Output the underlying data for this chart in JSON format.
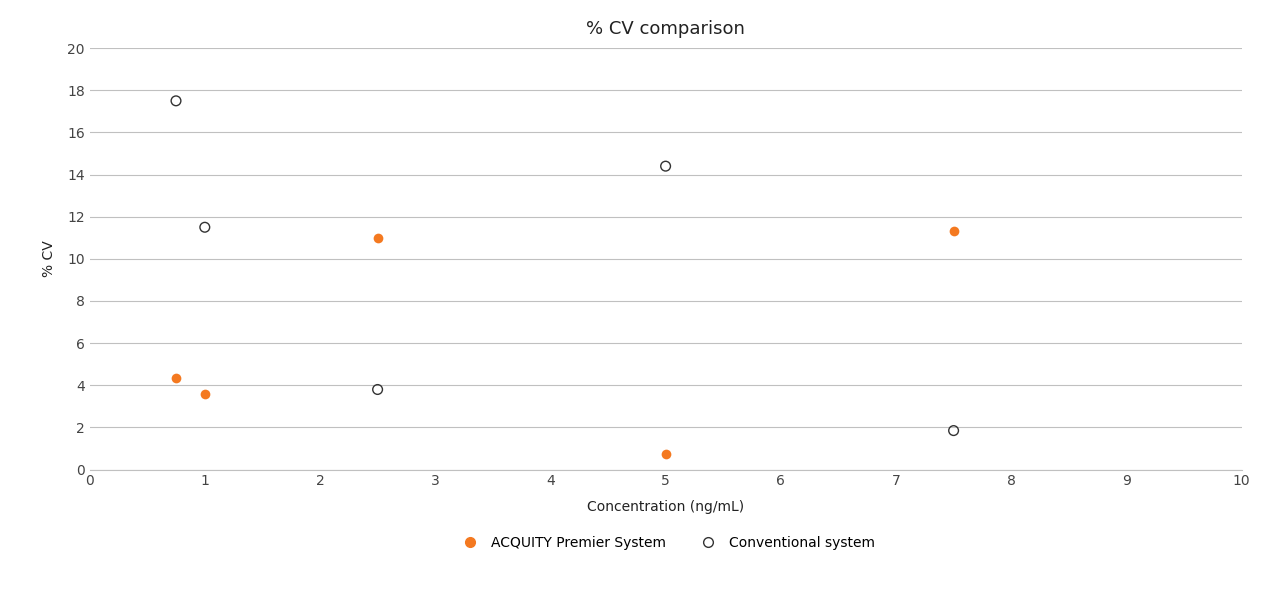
{
  "title": "% CV comparison",
  "xlabel": "Concentration (ng/mL)",
  "ylabel": "% CV",
  "xlim": [
    0,
    10
  ],
  "ylim": [
    0,
    20
  ],
  "xticks": [
    0,
    1,
    2,
    3,
    4,
    5,
    6,
    7,
    8,
    9,
    10
  ],
  "yticks": [
    0,
    2,
    4,
    6,
    8,
    10,
    12,
    14,
    16,
    18,
    20
  ],
  "acquity_x": [
    0.75,
    1.0,
    2.5,
    5.0,
    7.5
  ],
  "acquity_y": [
    4.35,
    3.6,
    11.0,
    0.75,
    11.3
  ],
  "conventional_x": [
    0.75,
    1.0,
    2.5,
    5.0,
    7.5
  ],
  "conventional_y": [
    17.5,
    11.5,
    3.8,
    14.4,
    1.85
  ],
  "acquity_color": "#F47920",
  "conventional_color": "#333333",
  "background_color": "#ffffff",
  "grid_color": "#c0c0c0",
  "title_fontsize": 13,
  "label_fontsize": 10,
  "tick_fontsize": 10,
  "legend_acquity": "ACQUITY Premier System",
  "legend_conventional": "Conventional system",
  "marker_size": 7
}
